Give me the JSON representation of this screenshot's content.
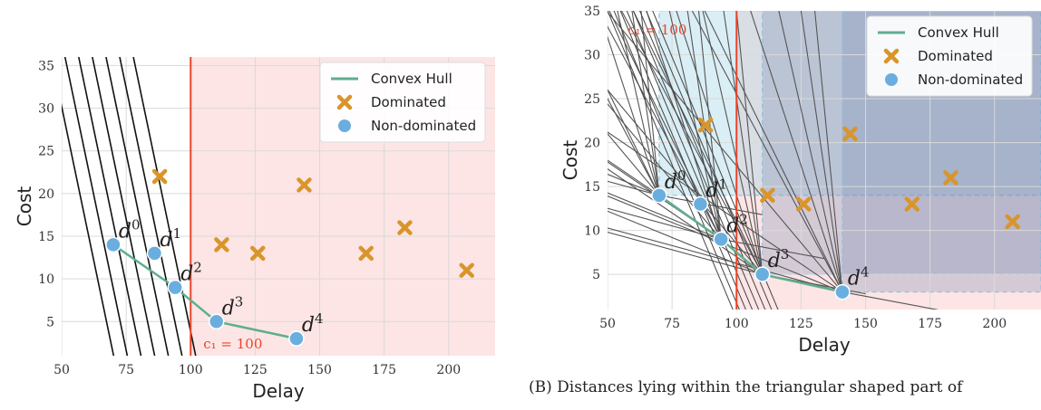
{
  "caption_b": "(B) Distances lying within the triangular shaped part of",
  "colors": {
    "hull": "#5fae8e",
    "dominated": "#d9952b",
    "nondominated": "#6aaee0",
    "constraint": "#e8452a",
    "infeasible": "#fde5e5",
    "grid": "#d9d9d9"
  },
  "chart_data": [
    {
      "type": "scatter",
      "xlabel": "Delay",
      "ylabel": "Cost",
      "xlim": [
        50,
        218
      ],
      "ylim": [
        1,
        36
      ],
      "xticks": [
        "50",
        "75",
        "100",
        "125",
        "150",
        "175",
        "200"
      ],
      "yticks": [
        "5",
        "10",
        "15",
        "20",
        "25",
        "30",
        "35"
      ],
      "grid": true,
      "legend_position": "top-right",
      "legend": [
        "Convex Hull",
        "Dominated",
        "Non-dominated"
      ],
      "constraint": {
        "x": 100,
        "label": "c₁ = 100"
      },
      "infeasible_region": "x > 100",
      "convex_hull": [
        [
          70,
          14
        ],
        [
          94,
          9
        ],
        [
          110,
          5
        ],
        [
          141,
          3
        ]
      ],
      "non_dominated": [
        {
          "x": 70,
          "y": 14,
          "label": "d",
          "sup": "0"
        },
        {
          "x": 86,
          "y": 13,
          "label": "d",
          "sup": "1"
        },
        {
          "x": 94,
          "y": 9,
          "label": "d",
          "sup": "2"
        },
        {
          "x": 110,
          "y": 5,
          "label": "d",
          "sup": "3"
        },
        {
          "x": 141,
          "y": 3,
          "label": "d",
          "sup": "4"
        }
      ],
      "dominated": [
        [
          88,
          22
        ],
        [
          112,
          14
        ],
        [
          126,
          13
        ],
        [
          144,
          21
        ],
        [
          168,
          13
        ],
        [
          183,
          16
        ],
        [
          207,
          11
        ]
      ],
      "parallel_lines": "black lines of slope −1.45 left of the hull"
    },
    {
      "type": "scatter",
      "xlabel": "Delay",
      "ylabel": "Cost",
      "xlim": [
        50,
        218
      ],
      "ylim": [
        1,
        35
      ],
      "xticks": [
        "50",
        "75",
        "100",
        "125",
        "150",
        "175",
        "200"
      ],
      "yticks": [
        "5",
        "10",
        "15",
        "20",
        "25",
        "30",
        "35"
      ],
      "grid": true,
      "legend_position": "top-right",
      "legend": [
        "Convex Hull",
        "Dominated",
        "Non-dominated"
      ],
      "constraint": {
        "x": 100,
        "label": "c₁ = 100"
      },
      "convex_hull": [
        [
          70,
          14
        ],
        [
          94,
          9
        ],
        [
          110,
          5
        ],
        [
          141,
          3
        ]
      ],
      "non_dominated": [
        {
          "x": 70,
          "y": 14,
          "label": "d",
          "sup": "0"
        },
        {
          "x": 86,
          "y": 13,
          "label": "d",
          "sup": "1"
        },
        {
          "x": 94,
          "y": 9,
          "label": "d",
          "sup": "2"
        },
        {
          "x": 110,
          "y": 5,
          "label": "d",
          "sup": "3"
        },
        {
          "x": 141,
          "y": 3,
          "label": "d",
          "sup": "4"
        }
      ],
      "dominated": [
        [
          88,
          22
        ],
        [
          112,
          14
        ],
        [
          126,
          13
        ],
        [
          144,
          21
        ],
        [
          168,
          13
        ],
        [
          183,
          16
        ],
        [
          207,
          11
        ]
      ],
      "dominance_boxes": [
        [
          70,
          14
        ],
        [
          110,
          5
        ],
        [
          141,
          3
        ]
      ],
      "triangles": "gray lines through the convex hull vertices"
    }
  ]
}
